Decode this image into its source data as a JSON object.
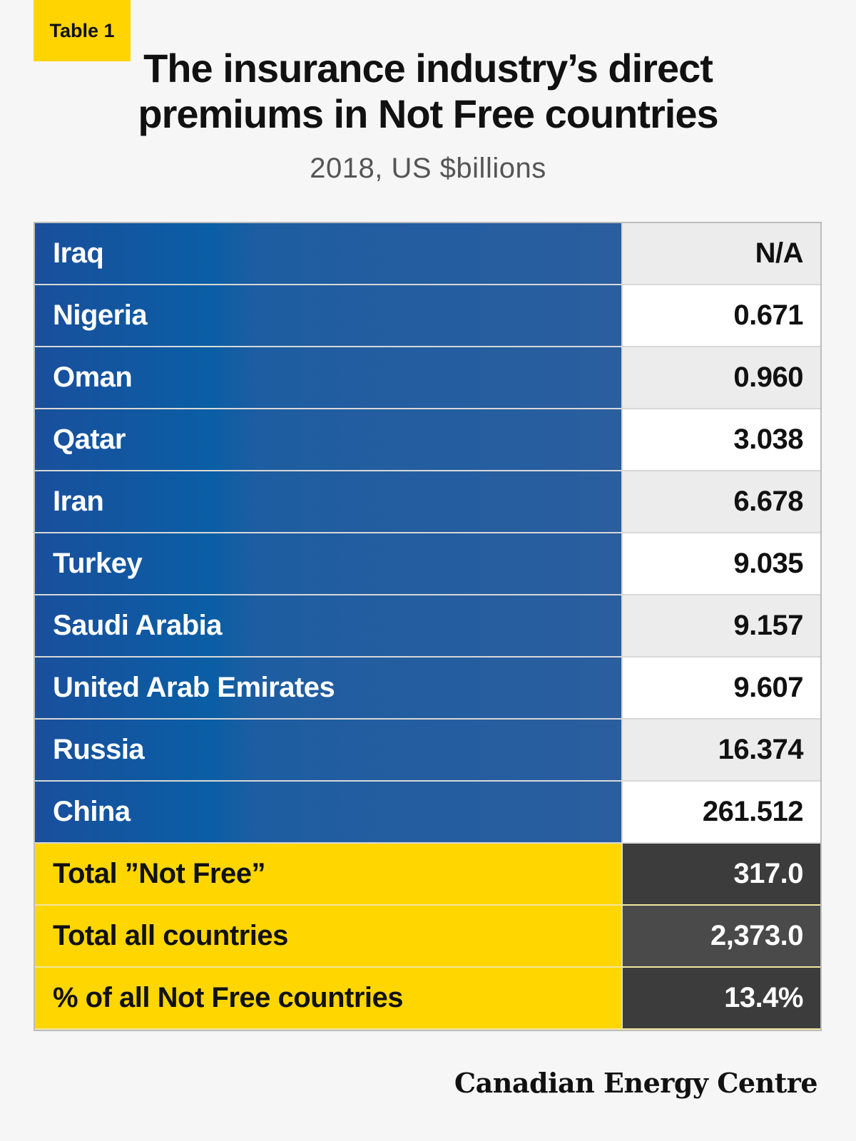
{
  "badge": "Table 1",
  "title_line1": "The insurance industry’s direct",
  "title_line2": "premiums in Not Free countries",
  "subtitle": "2018, US $billions",
  "chart_data": {
    "type": "table",
    "title": "The insurance industry’s direct premiums in Not Free countries",
    "subtitle": "2018, US $billions",
    "rows": [
      {
        "country": "Iraq",
        "value": "N/A"
      },
      {
        "country": "Nigeria",
        "value": "0.671"
      },
      {
        "country": "Oman",
        "value": "0.960"
      },
      {
        "country": "Qatar",
        "value": "3.038"
      },
      {
        "country": "Iran",
        "value": "6.678"
      },
      {
        "country": "Turkey",
        "value": "9.035"
      },
      {
        "country": "Saudi Arabia",
        "value": "9.157"
      },
      {
        "country": "United Arab Emirates",
        "value": "9.607"
      },
      {
        "country": "Russia",
        "value": "16.374"
      },
      {
        "country": "China",
        "value": "261.512"
      }
    ],
    "totals": [
      {
        "label": "Total ”Not Free”",
        "value": "317.0"
      },
      {
        "label": "Total all countries",
        "value": "2,373.0"
      },
      {
        "label": "%  of all Not Free countries",
        "value": "13.4%"
      }
    ]
  },
  "brand": "Canadian Energy Centre",
  "colors": {
    "country_column": "#1e5da1",
    "total_column": "#ffd600",
    "total_values": "#3c3c3c",
    "badge": "#ffd400"
  }
}
